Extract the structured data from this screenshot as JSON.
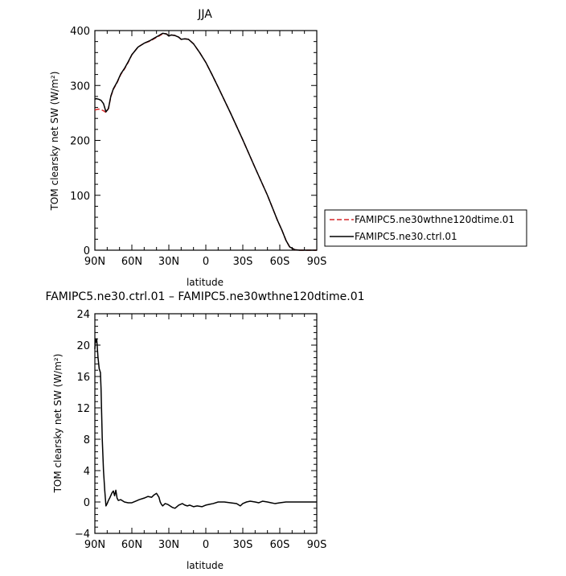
{
  "chart_data": [
    {
      "type": "line",
      "title": "JJA",
      "xlabel": "latitude",
      "ylabel": "TOM clearsky net SW (W/m²)",
      "xlim": [
        90,
        -90
      ],
      "ylim": [
        0,
        400
      ],
      "x_ticks": [
        90,
        60,
        30,
        0,
        -30,
        -60,
        -90
      ],
      "x_tick_labels": [
        "90N",
        "60N",
        "30N",
        "0",
        "30S",
        "60S",
        "90S"
      ],
      "y_ticks": [
        0,
        100,
        200,
        300,
        400
      ],
      "y_tick_labels": [
        "0",
        "100",
        "200",
        "300",
        "400"
      ],
      "grid": false,
      "legend_position": "right",
      "series": [
        {
          "name": "FAMIPC5.ne30wthne120dtime.01",
          "color": "#d62728",
          "dash": "dashed",
          "x": [
            90,
            89,
            87,
            85,
            83,
            81,
            79,
            77,
            75,
            72,
            69,
            66,
            63,
            60,
            55,
            50,
            45,
            42,
            38,
            35,
            32,
            30,
            28,
            25,
            22,
            20,
            17,
            14,
            10,
            5,
            0,
            -5,
            -10,
            -20,
            -30,
            -40,
            -50,
            -55,
            -58,
            -62,
            -65,
            -68,
            -72,
            -76,
            -80,
            -85,
            -90
          ],
          "y": [
            255,
            256,
            257,
            256,
            254,
            251,
            258,
            280,
            293,
            305,
            320,
            330,
            342,
            356,
            370,
            377,
            381,
            385,
            390,
            394,
            394,
            390,
            392,
            391,
            388,
            384,
            385,
            384,
            376,
            360,
            342,
            320,
            297,
            250,
            201,
            150,
            100,
            72,
            55,
            35,
            18,
            6,
            1,
            0,
            0,
            0,
            0
          ]
        },
        {
          "name": "FAMIPC5.ne30.ctrl.01",
          "color": "#000000",
          "dash": "solid",
          "x": [
            90,
            89,
            87,
            85,
            83,
            81,
            79,
            77,
            75,
            72,
            69,
            66,
            63,
            60,
            55,
            50,
            45,
            42,
            38,
            35,
            32,
            30,
            28,
            25,
            22,
            20,
            17,
            14,
            10,
            5,
            0,
            -5,
            -10,
            -20,
            -30,
            -40,
            -50,
            -55,
            -58,
            -62,
            -65,
            -68,
            -72,
            -76,
            -80,
            -85,
            -90
          ],
          "y": [
            275,
            276,
            275,
            273,
            267,
            252,
            258,
            281,
            294,
            306,
            321,
            331,
            343,
            356,
            370,
            377,
            382,
            386,
            391,
            395,
            394,
            390,
            392,
            391,
            388,
            384,
            385,
            384,
            376,
            360,
            342,
            320,
            297,
            250,
            201,
            150,
            100,
            72,
            55,
            35,
            18,
            6,
            1,
            0,
            0,
            0,
            0
          ]
        }
      ]
    },
    {
      "type": "line",
      "title": "FAMIPC5.ne30.ctrl.01 – FAMIPC5.ne30wthne120dtime.01",
      "xlabel": "latitude",
      "ylabel": "TOM clearsky net SW (W/m²)",
      "xlim": [
        90,
        -90
      ],
      "ylim": [
        -4,
        24
      ],
      "x_ticks": [
        90,
        60,
        30,
        0,
        -30,
        -60,
        -90
      ],
      "x_tick_labels": [
        "90N",
        "60N",
        "30N",
        "0",
        "30S",
        "60S",
        "90S"
      ],
      "y_ticks": [
        -4,
        0,
        4,
        8,
        12,
        16,
        20,
        24
      ],
      "y_tick_labels": [
        "−4",
        "0",
        "4",
        "8",
        "12",
        "16",
        "20",
        "24"
      ],
      "grid": false,
      "series": [
        {
          "color": "#000000",
          "dash": "solid",
          "x": [
            90,
            89.5,
            89,
            88.5,
            87.5,
            86.5,
            85.5,
            85,
            84,
            83,
            82,
            81,
            80,
            79,
            78,
            76,
            75,
            74,
            73,
            72,
            71,
            69,
            66,
            63,
            60,
            57,
            54,
            50,
            47,
            44,
            42,
            40,
            38,
            37,
            36,
            35,
            33,
            31,
            29,
            27,
            25,
            22,
            19,
            17,
            15,
            13,
            10,
            7,
            3,
            0,
            -3,
            -6,
            -10,
            -15,
            -20,
            -25,
            -28,
            -30,
            -33,
            -36,
            -40,
            -43,
            -46,
            -50,
            -53,
            -56,
            -60,
            -65,
            -70,
            -75,
            -80,
            -85,
            -90
          ],
          "y": [
            19.5,
            20.8,
            20.4,
            20.8,
            18.5,
            17.0,
            16.5,
            14.5,
            8.0,
            4.0,
            1.5,
            -0.5,
            -0.2,
            0.2,
            0.5,
            1.2,
            1.4,
            0.8,
            1.5,
            0.5,
            0.2,
            0.3,
            0.0,
            -0.1,
            -0.1,
            0.1,
            0.3,
            0.5,
            0.7,
            0.6,
            0.9,
            1.1,
            0.6,
            0.0,
            -0.3,
            -0.5,
            -0.2,
            -0.3,
            -0.5,
            -0.7,
            -0.8,
            -0.4,
            -0.2,
            -0.4,
            -0.5,
            -0.4,
            -0.6,
            -0.5,
            -0.6,
            -0.4,
            -0.3,
            -0.2,
            0.0,
            0.0,
            -0.1,
            -0.2,
            -0.5,
            -0.2,
            0.0,
            0.1,
            0.0,
            -0.1,
            0.1,
            0.0,
            -0.1,
            -0.2,
            -0.1,
            0.0,
            0.0,
            0.0,
            0.0,
            0.0,
            0.0
          ]
        }
      ]
    }
  ]
}
